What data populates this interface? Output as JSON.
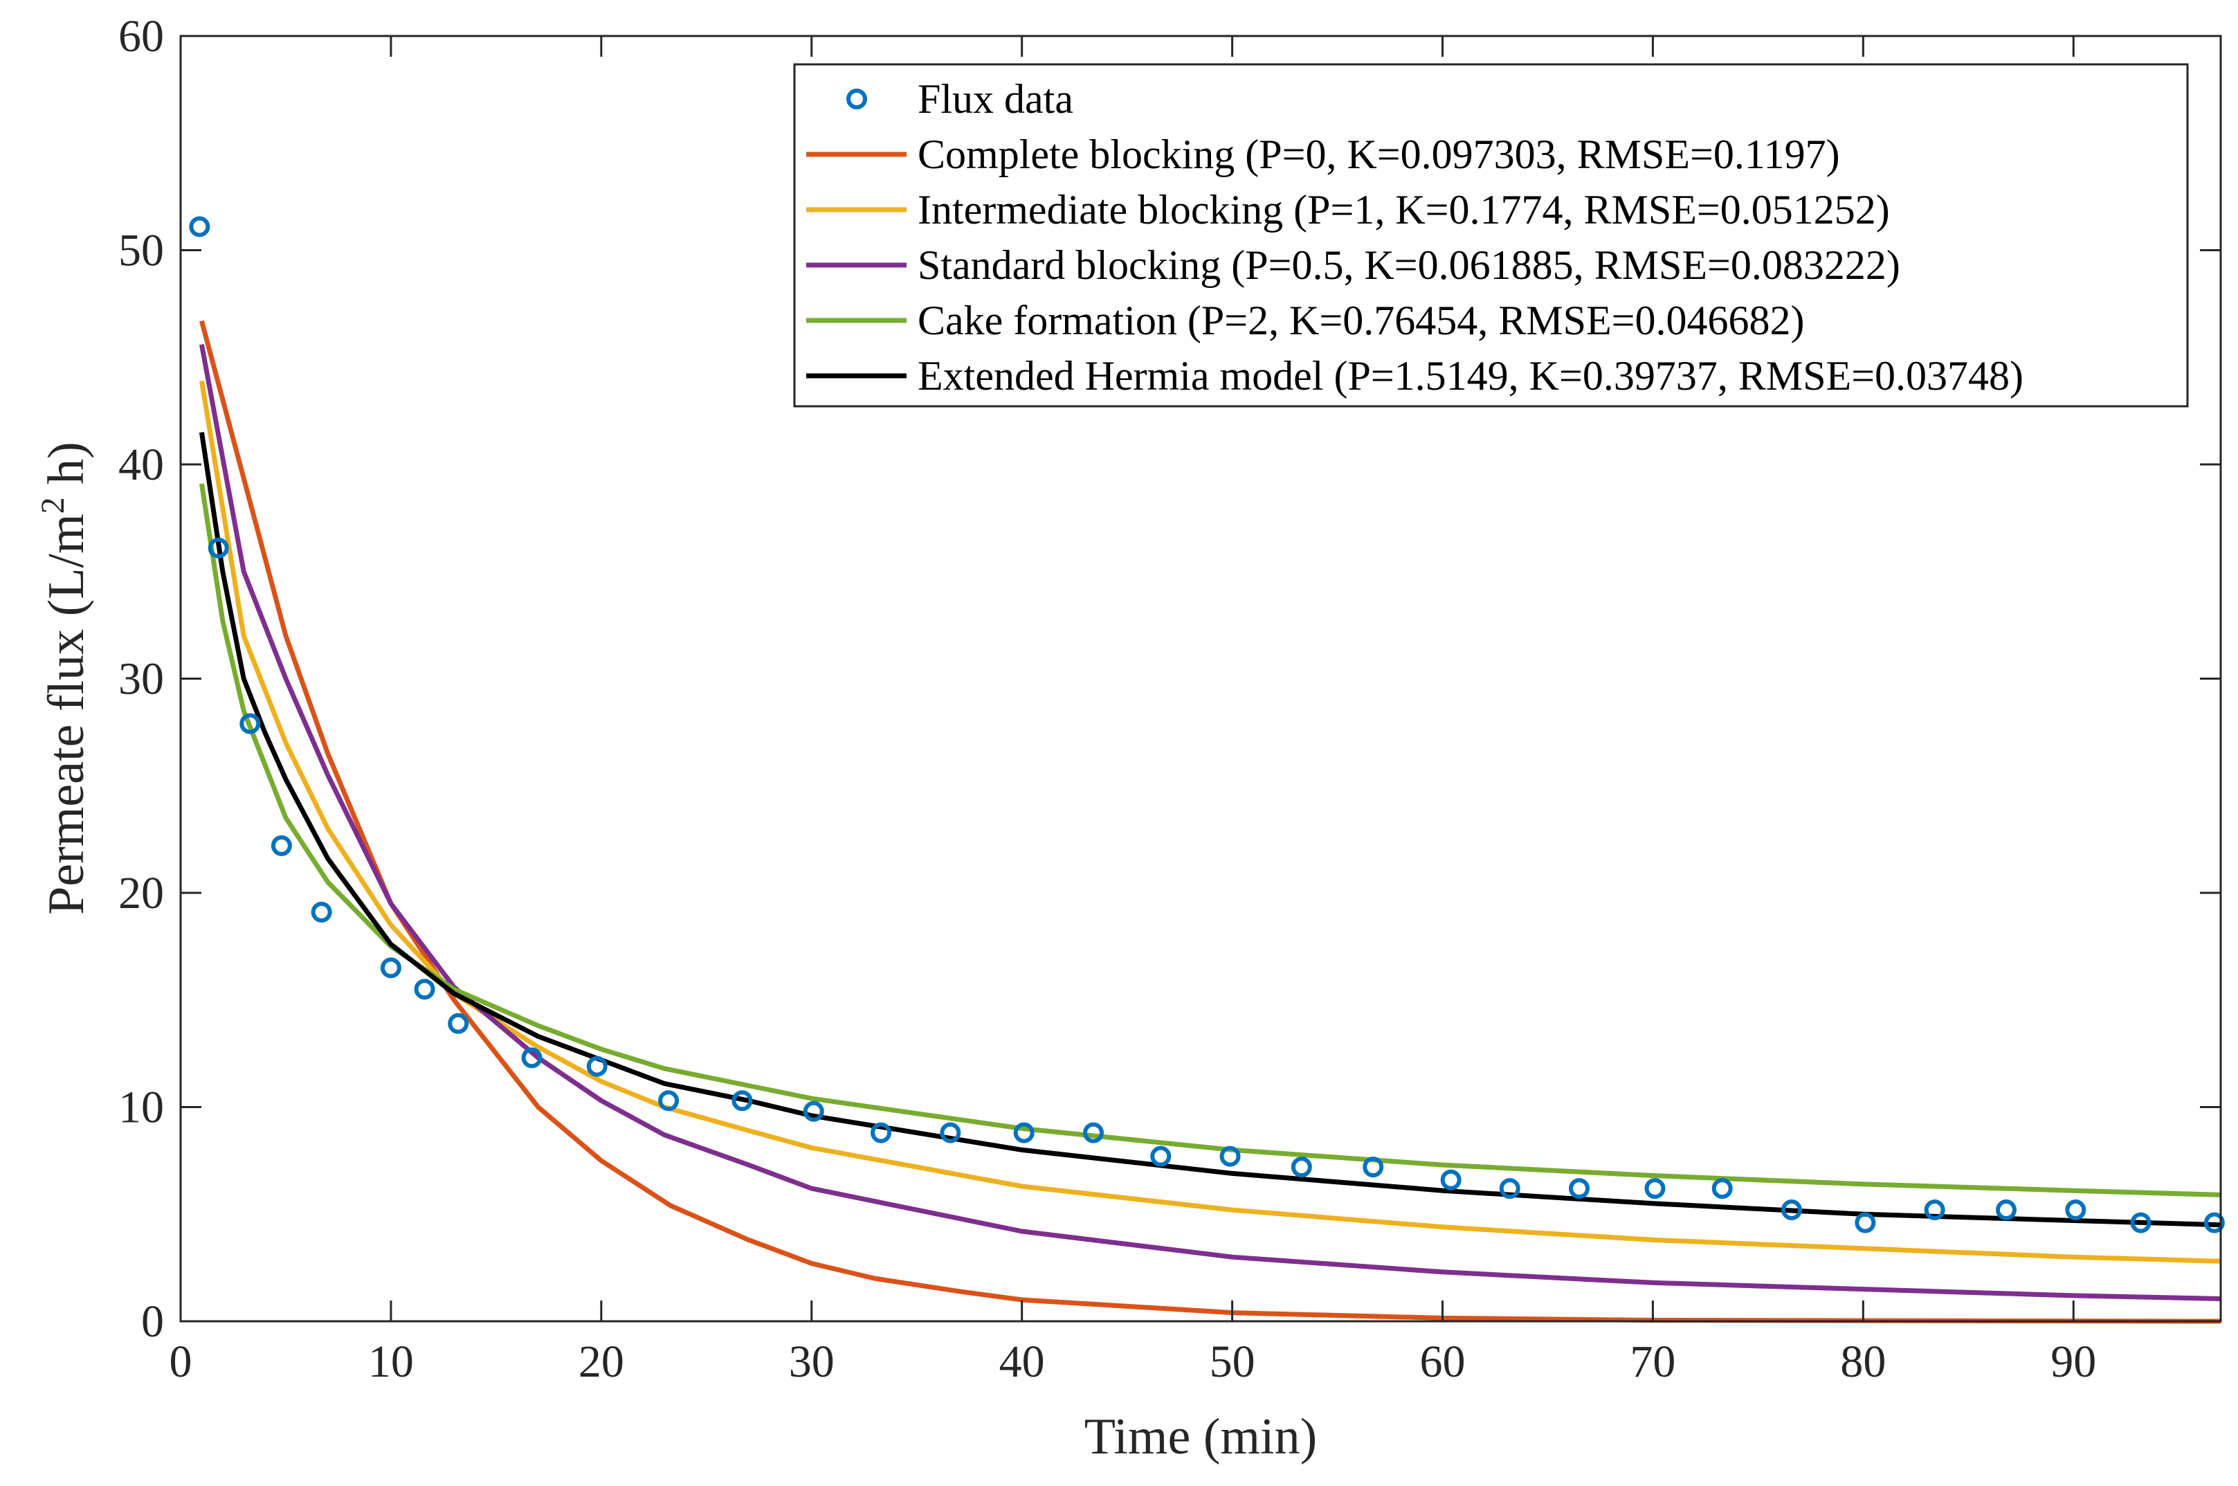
{
  "chart_data": {
    "type": "line",
    "title": "",
    "xlabel": "Time (min)",
    "ylabel": "Permeate flux (L/m",
    "ylabel_superscript": "2",
    "ylabel_suffix": " h)",
    "xlim": [
      0,
      97
    ],
    "ylim": [
      0,
      60
    ],
    "xticks": [
      "0",
      "10",
      "20",
      "30",
      "40",
      "50",
      "60",
      "70",
      "80",
      "90"
    ],
    "yticks": [
      "0",
      "10",
      "20",
      "30",
      "40",
      "50",
      "60"
    ],
    "grid": false,
    "legend_position": "top-right",
    "scatter": {
      "name": "Flux data",
      "color": "#0072BD",
      "x": [
        0.9,
        1.8,
        3.3,
        4.8,
        6.7,
        10.0,
        11.6,
        13.2,
        16.7,
        19.8,
        23.2,
        26.7,
        30.1,
        33.3,
        36.6,
        40.1,
        43.4,
        46.6,
        49.9,
        53.3,
        56.7,
        60.4,
        63.2,
        66.5,
        70.1,
        73.3,
        76.6,
        80.1,
        83.4,
        86.8,
        90.1,
        93.2,
        96.7
      ],
      "y": [
        51.1,
        36.1,
        27.9,
        22.2,
        19.1,
        16.5,
        15.5,
        13.9,
        12.3,
        11.9,
        10.3,
        10.3,
        9.8,
        8.8,
        8.8,
        8.8,
        8.8,
        7.7,
        7.7,
        7.2,
        7.2,
        6.6,
        6.2,
        6.2,
        6.2,
        6.2,
        5.2,
        4.6,
        5.2,
        5.2,
        5.2,
        4.6,
        4.6
      ]
    },
    "series": [
      {
        "name": "Complete blocking (P=0, K=0.097303, RMSE=0.1197)",
        "color": "#D95319",
        "x": [
          1,
          5,
          7,
          10,
          13,
          17,
          20,
          23.3,
          27,
          30,
          33,
          37,
          40,
          50,
          60,
          70,
          97
        ],
        "y": [
          46.7,
          32,
          26.5,
          19.5,
          15,
          10,
          7.5,
          5.4,
          3.8,
          2.7,
          2.0,
          1.4,
          1.0,
          0.4,
          0.15,
          0.05,
          0
        ]
      },
      {
        "name": "Intermediate blocking (P=1, K=0.1774, RMSE=0.051252)",
        "color": "#EDB120",
        "x": [
          1,
          3,
          5,
          7,
          10,
          13,
          17,
          20,
          23,
          27,
          30,
          40,
          50,
          60,
          70,
          80,
          90,
          97
        ],
        "y": [
          43.9,
          32,
          27,
          23,
          18.5,
          15.3,
          12.8,
          11.2,
          10,
          8.9,
          8.1,
          6.3,
          5.2,
          4.4,
          3.8,
          3.4,
          3.0,
          2.8
        ]
      },
      {
        "name": "Standard blocking (P=0.5, K=0.061885, RMSE=0.083222)",
        "color": "#7E2F8E",
        "x": [
          1,
          3,
          5,
          7,
          10,
          13,
          17,
          20,
          23,
          27,
          30,
          40,
          50,
          60,
          70,
          80,
          90,
          97
        ],
        "y": [
          45.6,
          35,
          30,
          25.5,
          19.5,
          15.6,
          12.3,
          10.3,
          8.7,
          7.3,
          6.2,
          4.2,
          3.0,
          2.3,
          1.8,
          1.5,
          1.2,
          1.05
        ]
      },
      {
        "name": "Cake formation (P=2, K=0.76454, RMSE=0.046682)",
        "color": "#77AC30",
        "x": [
          1,
          2,
          3,
          5,
          7,
          10,
          13,
          17,
          20,
          23,
          27,
          30,
          40,
          50,
          60,
          70,
          80,
          90,
          97
        ],
        "y": [
          39.1,
          32.7,
          28.5,
          23.5,
          20.5,
          17.5,
          15.5,
          13.8,
          12.7,
          11.8,
          11,
          10.4,
          9.0,
          8.0,
          7.3,
          6.8,
          6.4,
          6.1,
          5.9
        ]
      },
      {
        "name": "Extended Hermia model (P=1.5149, K=0.39737, RMSE=0.03748)",
        "color": "#000000",
        "x": [
          1,
          2,
          3,
          4,
          5,
          7,
          10,
          13,
          17,
          20,
          23,
          27,
          30,
          40,
          50,
          60,
          70,
          80,
          90,
          97
        ],
        "y": [
          41.5,
          35,
          30,
          27.5,
          25.3,
          21.6,
          17.6,
          15.3,
          13.3,
          12.2,
          11.1,
          10.3,
          9.6,
          8.0,
          6.9,
          6.1,
          5.5,
          5.0,
          4.7,
          4.5
        ]
      }
    ]
  }
}
